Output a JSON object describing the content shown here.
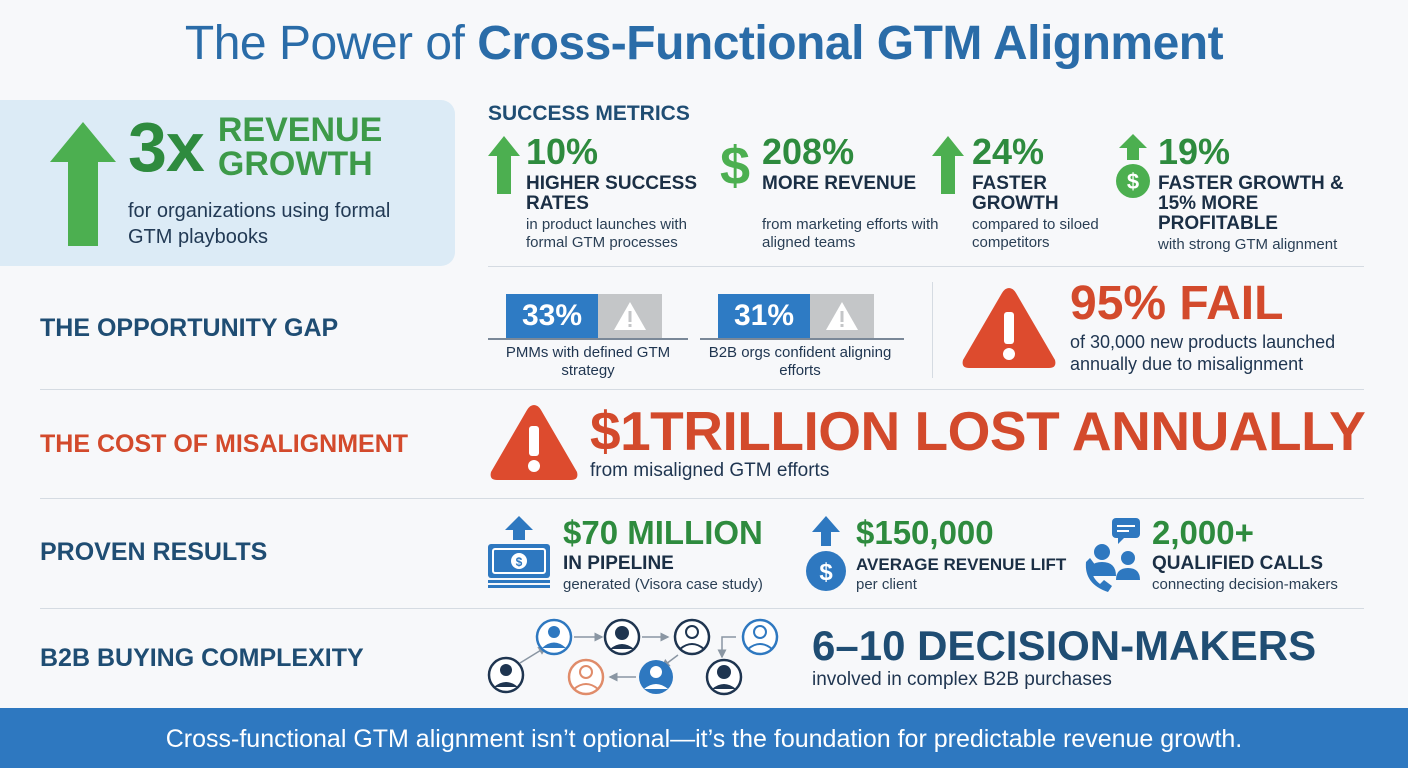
{
  "title": {
    "part1": "The Power of ",
    "part2": "Cross-Functional GTM Alignment"
  },
  "hero": {
    "big": "3x",
    "label": "REVENUE GROWTH",
    "sub": "for organizations using formal GTM playbooks"
  },
  "metrics": {
    "label": "SUCCESS METRICS",
    "items": [
      {
        "value": "10%",
        "heading": "HIGHER SUCCESS RATES",
        "sub": "in product launches with formal GTM processes",
        "icon": "up-arrow-icon"
      },
      {
        "value": "208%",
        "heading": "MORE REVENUE",
        "sub": "from marketing efforts with aligned teams",
        "icon": "dollar-icon"
      },
      {
        "value": "24%",
        "heading": "FASTER GROWTH",
        "sub": "compared to siloed competitors",
        "icon": "up-arrow-icon"
      },
      {
        "value": "19%",
        "heading": "FASTER GROWTH & 15% MORE PROFITABLE",
        "sub": "with strong GTM alignment",
        "icon": "coin-arrow-icon"
      }
    ]
  },
  "gap": {
    "label": "THE OPPORTUNITY GAP",
    "items": [
      {
        "value": "33%",
        "caption": "PMMs with defined GTM strategy"
      },
      {
        "value": "31%",
        "caption": "B2B orgs confident aligning efforts"
      }
    ],
    "fail_big": "95% FAIL",
    "fail_sub": "of 30,000 new products launched annually due to misalignment"
  },
  "cost": {
    "label": "THE COST OF MISALIGNMENT",
    "big": "$1TRILLION LOST ANNUALLY",
    "sub": "from misaligned GTM efforts"
  },
  "results": {
    "label": "PROVEN RESULTS",
    "items": [
      {
        "value": "$70 MILLION",
        "heading": "IN PIPELINE",
        "sub": "generated (Visora case study)",
        "icon": "money-bill-icon"
      },
      {
        "value": "$150,000",
        "heading": "AVERAGE REVENUE LIFT",
        "sub": "per client",
        "icon": "dollar-coin-icon"
      },
      {
        "value": "2,000+",
        "heading": "QUALIFIED CALLS",
        "sub": "connecting decision-makers",
        "icon": "people-call-icon"
      }
    ]
  },
  "complexity": {
    "label": "B2B BUYING COMPLEXITY",
    "big": "6–10 DECISION-MAKERS",
    "sub": "involved in complex B2B purchases"
  },
  "footer": "Cross-functional GTM alignment isn’t optional—it’s the foundation for predictable revenue growth.",
  "colors": {
    "green": "#2e8b3e",
    "blue": "#2a6ca8",
    "red": "#d34a2c",
    "dark": "#1f4d73",
    "footer": "#2e78c0"
  }
}
